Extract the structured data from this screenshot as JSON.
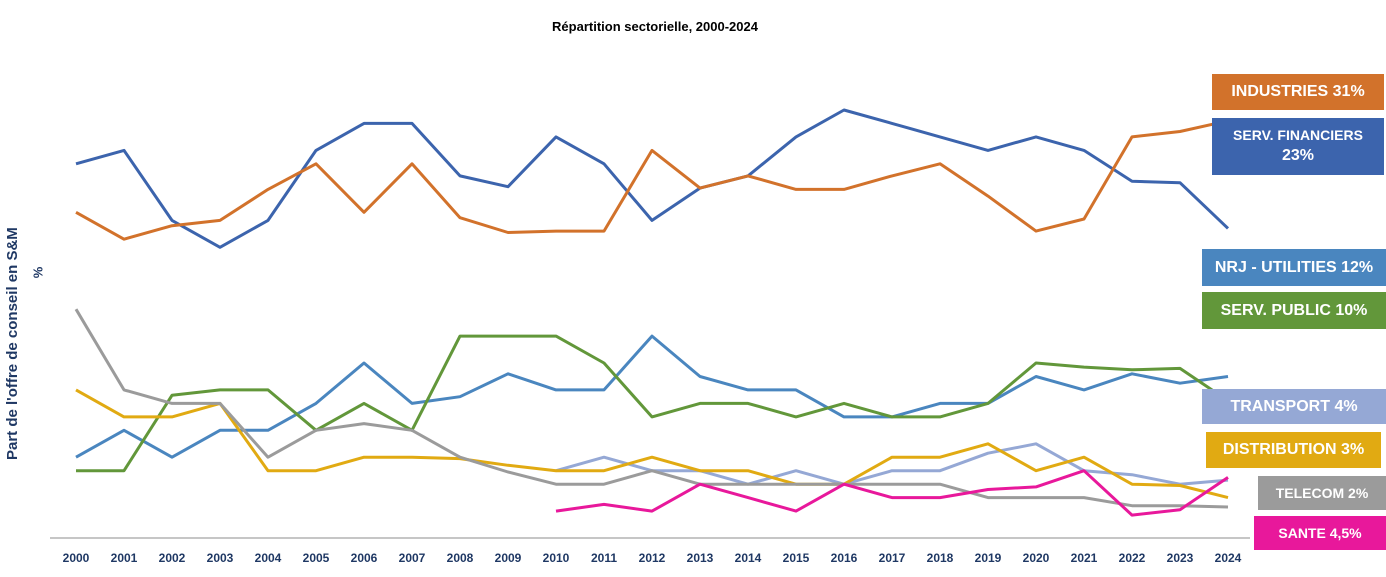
{
  "chart_data": {
    "type": "line",
    "title": "Répartition sectorielle, 2000-2024",
    "ylabel": "Part de l'offre de conseil en S&M",
    "yunit": "%",
    "x": [
      "2000",
      "2001",
      "2002",
      "2003",
      "2004",
      "2005",
      "2006",
      "2007",
      "2008",
      "2009",
      "2010",
      "2011",
      "2012",
      "2013",
      "2014",
      "2015",
      "2016",
      "2017",
      "2018",
      "2019",
      "2020",
      "2021",
      "2022",
      "2023",
      "2024"
    ],
    "ylim": [
      0,
      37
    ],
    "grid": false,
    "legend": "right, labels beside series ends",
    "series": [
      {
        "name": "SERV. FINANCIERS 23%",
        "color": "#3c64ad",
        "values": [
          27.8,
          28.8,
          23.6,
          21.6,
          23.6,
          28.8,
          30.8,
          30.8,
          26.9,
          26.1,
          29.8,
          27.8,
          23.6,
          26.0,
          26.9,
          29.8,
          31.8,
          30.8,
          29.8,
          28.8,
          29.8,
          28.8,
          26.5,
          26.4,
          23.0
        ]
      },
      {
        "name": "INDUSTRIES 31%",
        "color": "#d2722b",
        "values": [
          24.2,
          22.2,
          23.2,
          23.6,
          25.9,
          27.8,
          24.2,
          27.8,
          23.8,
          22.7,
          22.8,
          22.8,
          28.8,
          26.0,
          26.9,
          25.9,
          25.9,
          26.9,
          27.8,
          25.4,
          22.8,
          23.7,
          29.8,
          30.2,
          31.0
        ]
      },
      {
        "name": "NRJ - UTILITIES 12%",
        "color": "#4a86bf",
        "values": [
          6.0,
          8.0,
          6.0,
          8.0,
          8.0,
          10.0,
          13.0,
          10.0,
          10.5,
          12.2,
          11.0,
          11.0,
          15.0,
          12.0,
          11.0,
          11.0,
          9.0,
          9.0,
          10.0,
          10.0,
          12.0,
          11.0,
          12.2,
          11.5,
          12.0
        ]
      },
      {
        "name": "SERV. PUBLIC 10%",
        "color": "#62973a",
        "values": [
          5.0,
          5.0,
          10.6,
          11.0,
          11.0,
          8.0,
          10.0,
          8.0,
          15.0,
          15.0,
          15.0,
          13.0,
          9.0,
          10.0,
          10.0,
          9.0,
          10.0,
          9.0,
          9.0,
          10.0,
          13.0,
          12.7,
          12.5,
          12.6,
          10.2
        ]
      },
      {
        "name": "TRANSPORT 4%",
        "color": "#95a8d5",
        "values": [
          null,
          null,
          null,
          null,
          null,
          null,
          null,
          null,
          null,
          null,
          5.0,
          6.0,
          5.0,
          5.0,
          4.0,
          5.0,
          4.0,
          5.0,
          5.0,
          6.3,
          7.0,
          5.0,
          4.7,
          4.0,
          4.3
        ]
      },
      {
        "name": "DISTRIBUTION 3%",
        "color": "#e1aa12",
        "values": [
          11.0,
          9.0,
          9.0,
          10.0,
          5.0,
          5.0,
          6.0,
          6.0,
          5.9,
          5.4,
          5.0,
          5.0,
          6.0,
          5.0,
          5.0,
          4.0,
          4.0,
          6.0,
          6.0,
          7.0,
          5.0,
          6.0,
          4.0,
          3.9,
          3.0
        ]
      },
      {
        "name": "TELECOM 2%",
        "color": "#9b9b9b",
        "values": [
          17.0,
          11.0,
          10.0,
          10.0,
          6.0,
          8.0,
          8.5,
          8.0,
          6.0,
          4.9,
          4.0,
          4.0,
          5.0,
          4.0,
          4.0,
          4.0,
          4.0,
          4.0,
          4.0,
          3.0,
          3.0,
          3.0,
          2.4,
          2.4,
          2.3
        ]
      },
      {
        "name": "SANTE 4,5%",
        "color": "#e8189b",
        "values": [
          null,
          null,
          null,
          null,
          null,
          null,
          null,
          null,
          null,
          null,
          2.0,
          2.5,
          2.0,
          4.0,
          3.0,
          2.0,
          4.0,
          3.0,
          3.0,
          3.6,
          3.8,
          5.0,
          1.7,
          2.1,
          4.5
        ]
      }
    ]
  },
  "labels": [
    {
      "key": "industries",
      "lines": [
        "INDUSTRIES 31%"
      ],
      "color": "#d2722b"
    },
    {
      "key": "financiers",
      "lines": [
        "SERV. FINANCIERS",
        "23%"
      ],
      "color": "#3c64ad"
    },
    {
      "key": "nrj",
      "lines": [
        "NRJ - UTILITIES 12%"
      ],
      "color": "#4a86bf"
    },
    {
      "key": "public",
      "lines": [
        "SERV. PUBLIC 10%"
      ],
      "color": "#62973a"
    },
    {
      "key": "transport",
      "lines": [
        "TRANSPORT 4%"
      ],
      "color": "#95a8d5"
    },
    {
      "key": "distribution",
      "lines": [
        "DISTRIBUTION 3%"
      ],
      "color": "#e1aa12"
    },
    {
      "key": "telecom",
      "lines": [
        "TELECOM 2%"
      ],
      "color": "#9b9b9b"
    },
    {
      "key": "sante",
      "lines": [
        "SANTE 4,5%"
      ],
      "color": "#e8189b"
    }
  ]
}
